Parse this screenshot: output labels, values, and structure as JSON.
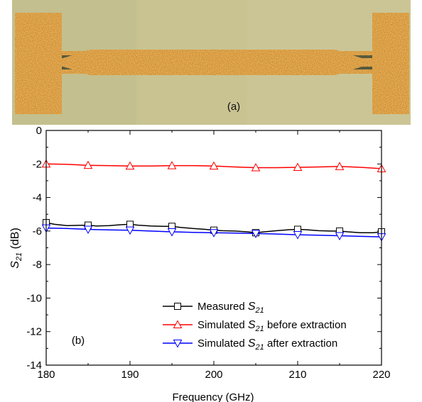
{
  "photo": {
    "label": "(a)",
    "colors": {
      "background": "#c9c392",
      "metal": "#c8822c",
      "gap": "#585a3c"
    }
  },
  "chart_data": {
    "type": "line",
    "panel_label": "(b)",
    "xlabel": "Frequency (GHz)",
    "ylabel": {
      "main": "S",
      "sub": "21",
      "unit": " (dB)"
    },
    "xlim": [
      180,
      220
    ],
    "ylim": [
      -14,
      0
    ],
    "xticks": [
      180,
      190,
      200,
      210,
      220
    ],
    "yticks": [
      0,
      -2,
      -4,
      -6,
      -8,
      -10,
      -12,
      -14
    ],
    "grid": false,
    "legend_position": "lower-right",
    "series": [
      {
        "name": {
          "prefix": "Measured ",
          "sym": "S",
          "sub": "21",
          "suffix": ""
        },
        "color": "#000000",
        "marker": "square",
        "line_x": [
          180,
          181,
          182.5,
          184,
          185,
          186,
          187.5,
          189,
          190,
          191,
          192.5,
          194,
          195,
          196,
          197.5,
          199,
          200,
          201,
          202.5,
          204,
          205,
          206,
          207.5,
          209,
          210,
          211,
          212.5,
          214,
          215,
          216,
          217.5,
          219,
          220
        ],
        "line_y": [
          -5.5,
          -5.6,
          -5.68,
          -5.66,
          -5.65,
          -5.7,
          -5.68,
          -5.62,
          -5.6,
          -5.65,
          -5.7,
          -5.72,
          -5.72,
          -5.78,
          -5.85,
          -5.9,
          -5.95,
          -5.98,
          -6.0,
          -6.05,
          -6.1,
          -6.05,
          -5.98,
          -5.92,
          -5.9,
          -5.92,
          -5.98,
          -6.0,
          -6.0,
          -6.05,
          -6.1,
          -6.1,
          -6.05
        ],
        "marker_x": [
          180,
          185,
          190,
          195,
          200,
          205,
          210,
          215,
          220
        ],
        "marker_y": [
          -5.5,
          -5.65,
          -5.6,
          -5.72,
          -5.95,
          -6.1,
          -5.9,
          -6.0,
          -6.05
        ]
      },
      {
        "name": {
          "prefix": "Simulated ",
          "sym": "S",
          "sub": "21",
          "suffix": " before extraction"
        },
        "color": "#ff0000",
        "marker": "triangle-up",
        "line_x": [
          180,
          182.5,
          185,
          187.5,
          190,
          192.5,
          195,
          197.5,
          200,
          202.5,
          205,
          207.5,
          210,
          212.5,
          215,
          217.5,
          220
        ],
        "line_y": [
          -2.0,
          -2.02,
          -2.08,
          -2.1,
          -2.12,
          -2.12,
          -2.1,
          -2.1,
          -2.12,
          -2.18,
          -2.22,
          -2.22,
          -2.2,
          -2.18,
          -2.15,
          -2.2,
          -2.28
        ],
        "marker_x": [
          180,
          185,
          190,
          195,
          200,
          205,
          210,
          215,
          220
        ],
        "marker_y": [
          -2.0,
          -2.08,
          -2.12,
          -2.1,
          -2.12,
          -2.22,
          -2.2,
          -2.15,
          -2.28
        ]
      },
      {
        "name": {
          "prefix": "Simulated ",
          "sym": "S",
          "sub": "21",
          "suffix": " after extraction"
        },
        "color": "#0000ff",
        "marker": "triangle-down",
        "line_x": [
          180,
          182.5,
          185,
          187.5,
          190,
          192.5,
          195,
          197.5,
          200,
          202.5,
          205,
          207.5,
          210,
          212.5,
          215,
          217.5,
          220
        ],
        "line_y": [
          -5.82,
          -5.85,
          -5.9,
          -5.93,
          -5.95,
          -6.0,
          -6.05,
          -6.08,
          -6.1,
          -6.12,
          -6.15,
          -6.18,
          -6.22,
          -6.25,
          -6.28,
          -6.32,
          -6.35
        ],
        "marker_x": [
          180,
          185,
          190,
          195,
          200,
          205,
          210,
          215,
          220
        ],
        "marker_y": [
          -5.82,
          -5.9,
          -5.95,
          -6.05,
          -6.1,
          -6.15,
          -6.22,
          -6.28,
          -6.35
        ]
      }
    ]
  }
}
